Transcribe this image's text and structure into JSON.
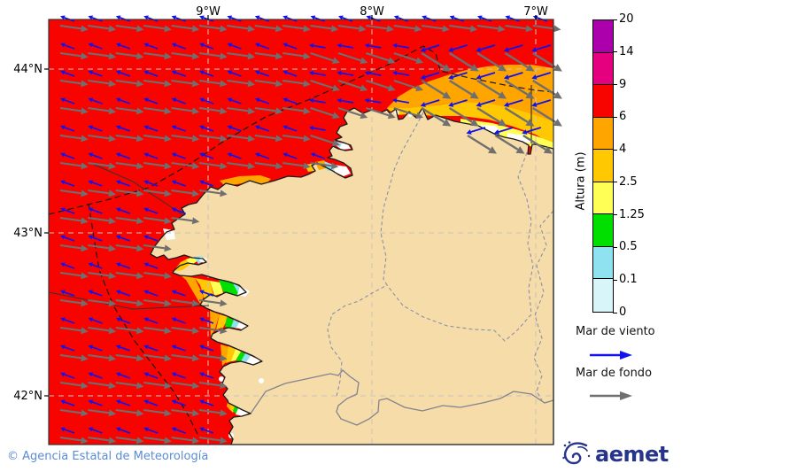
{
  "axes": {
    "top_ticks": [
      "9°W",
      "8°W",
      "7°W"
    ],
    "left_ticks": [
      "44°N",
      "43°N",
      "42°N"
    ]
  },
  "colorbar": {
    "title": "Altura (m)",
    "tick_labels": [
      "20",
      "14",
      "9",
      "6",
      "4",
      "2.5",
      "1.25",
      "0.5",
      "0.1",
      "0"
    ],
    "segment_colors_top_to_bottom": [
      "#AC00AC",
      "#E4007E",
      "#F80400",
      "#FFA500",
      "#FFC800",
      "#FFFF55",
      "#00DF00",
      "#8FE3F0",
      "#D8F6FA"
    ]
  },
  "legend": {
    "wind_sea_label": "Mar de viento",
    "wind_sea_color": "#1212EE",
    "swell_label": "Mar de fondo",
    "swell_color": "#6f6f6f"
  },
  "map": {
    "ocean_color": "#F80400",
    "land_color": "#F6DCA8",
    "coast_color": "#1a1a1a",
    "grid_color": "#C9C2BC",
    "boundary_color": "#8a90aa",
    "border_color": "#82828f",
    "sea_line_color": "#1a1a1a"
  },
  "footer": {
    "copyright": "© Agencia Estatal de Meteorología"
  },
  "logo": {
    "text": "aemet"
  }
}
